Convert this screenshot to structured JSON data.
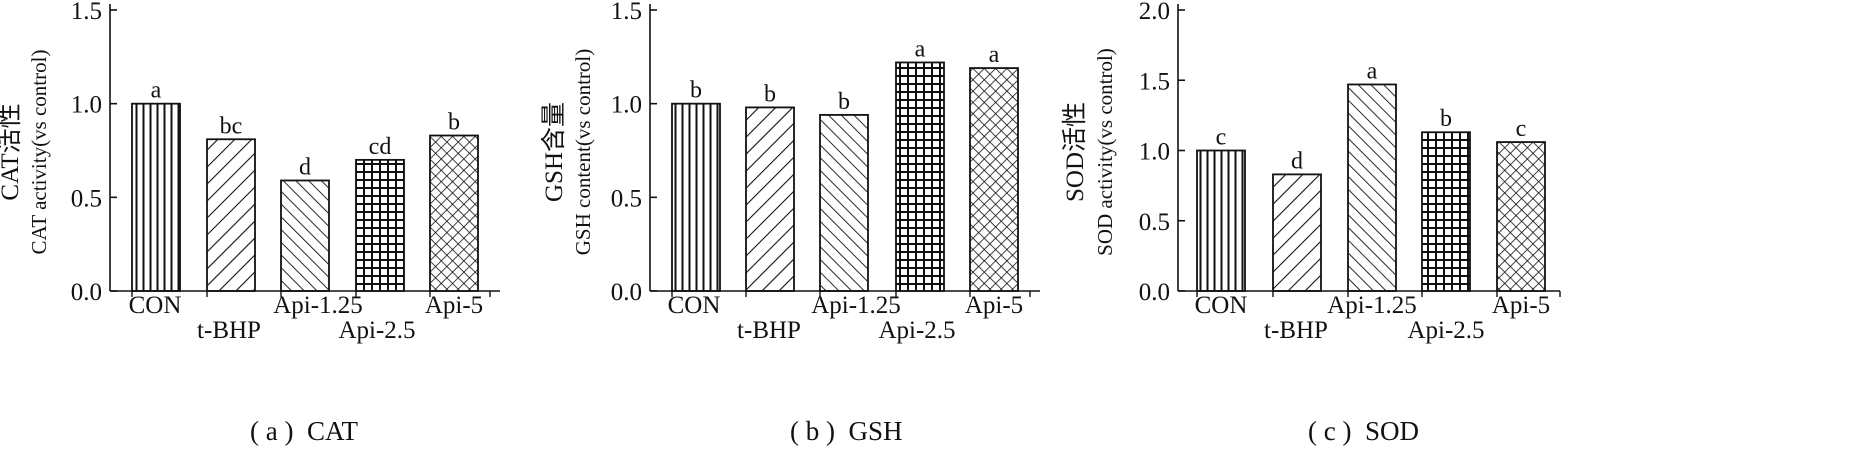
{
  "chart_data": [
    {
      "type": "bar",
      "panel": "a",
      "caption": "( a )  CAT",
      "ylabel_line1": "CAT活性",
      "ylabel_line2": "CAT activity(vs control)",
      "categories": [
        "CON",
        "t-BHP",
        "Api-1.25",
        "Api-2.5",
        "Api-5"
      ],
      "values": [
        1.0,
        0.81,
        0.59,
        0.7,
        0.83
      ],
      "significance_letters": [
        "a",
        "bc",
        "d",
        "cd",
        "b"
      ],
      "patterns": [
        "vertical-lines",
        "forward-diagonal",
        "backward-diagonal",
        "grid",
        "crosshatch"
      ],
      "ylim": [
        0,
        1.5
      ],
      "yticks": [
        0.0,
        0.5,
        1.0,
        1.5
      ],
      "ytick_labels": [
        "0.0",
        "0.5",
        "1.0",
        "1.5"
      ],
      "grid": false
    },
    {
      "type": "bar",
      "panel": "b",
      "caption": "( b )  GSH",
      "ylabel_line1": "GSH含量",
      "ylabel_line2": "GSH content(vs control)",
      "categories": [
        "CON",
        "t-BHP",
        "Api-1.25",
        "Api-2.5",
        "Api-5"
      ],
      "values": [
        1.0,
        0.98,
        0.94,
        1.22,
        1.19
      ],
      "significance_letters": [
        "b",
        "b",
        "b",
        "a",
        "a"
      ],
      "patterns": [
        "vertical-lines",
        "forward-diagonal",
        "backward-diagonal",
        "grid",
        "crosshatch"
      ],
      "ylim": [
        0,
        1.5
      ],
      "yticks": [
        0.0,
        0.5,
        1.0,
        1.5
      ],
      "ytick_labels": [
        "0.0",
        "0.5",
        "1.0",
        "1.5"
      ],
      "grid": false
    },
    {
      "type": "bar",
      "panel": "c",
      "caption": "( c )  SOD",
      "ylabel_line1": "SOD活性",
      "ylabel_line2": "SOD activity(vs control)",
      "categories": [
        "CON",
        "t-BHP",
        "Api-1.25",
        "Api-2.5",
        "Api-5"
      ],
      "values": [
        1.0,
        0.83,
        1.47,
        1.13,
        1.06
      ],
      "significance_letters": [
        "c",
        "d",
        "a",
        "b",
        "c"
      ],
      "patterns": [
        "vertical-lines",
        "forward-diagonal",
        "backward-diagonal",
        "grid",
        "crosshatch"
      ],
      "ylim": [
        0,
        2.0
      ],
      "yticks": [
        0.0,
        0.5,
        1.0,
        1.5,
        2.0
      ],
      "ytick_labels": [
        "0.0",
        "0.5",
        "1.0",
        "1.5",
        "2.0"
      ],
      "grid": false
    }
  ]
}
